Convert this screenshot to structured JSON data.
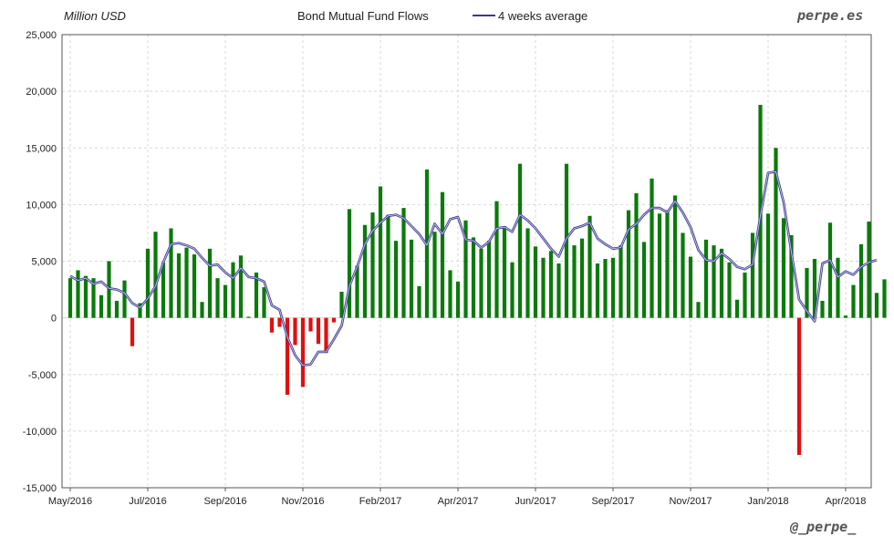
{
  "header": {
    "unit_label": "Million USD",
    "title": "Bond Mutual Fund Flows",
    "legend_label": "4 weeks average",
    "brand_top": "perpe.es",
    "brand_bottom": "@_perpe_"
  },
  "colors": {
    "positive": "#0a7a0a",
    "negative": "#e01010",
    "average_line": "#3a3a90",
    "grid": "#d9d9d9",
    "axis": "#555555"
  },
  "chart_data": {
    "type": "bar",
    "title": "Bond Mutual Fund Flows",
    "ylabel": "Million USD",
    "xlabel": "",
    "ylim": [
      -15000,
      25000
    ],
    "y_ticks": [
      {
        "value": 25000,
        "label": "25,000"
      },
      {
        "value": 20000,
        "label": "20,000"
      },
      {
        "value": 15000,
        "label": "15,000"
      },
      {
        "value": 10000,
        "label": "10,000"
      },
      {
        "value": 5000,
        "label": "5,000"
      },
      {
        "value": 0,
        "label": "0"
      },
      {
        "value": -5000,
        "label": "-5,000"
      },
      {
        "value": -10000,
        "label": "-10,000"
      },
      {
        "value": -15000,
        "label": "-15,000"
      }
    ],
    "x_ticks": [
      {
        "week": 0,
        "label": "May/2016"
      },
      {
        "week": 10,
        "label": "Jul/2016"
      },
      {
        "week": 20,
        "label": "Sep/2016"
      },
      {
        "week": 30,
        "label": "Nov/2016"
      },
      {
        "week": 40,
        "label": "Feb/2017"
      },
      {
        "week": 50,
        "label": "Apr/2017"
      },
      {
        "week": 60,
        "label": "Jun/2017"
      },
      {
        "week": 70,
        "label": "Sep/2017"
      },
      {
        "week": 80,
        "label": "Nov/2017"
      },
      {
        "week": 90,
        "label": "Jan/2018"
      },
      {
        "week": 100,
        "label": "Apr/2018"
      }
    ],
    "grid": true,
    "legend_position": "top",
    "series": [
      {
        "type": "bar",
        "values": [
          3500,
          4200,
          3700,
          3500,
          2000,
          5000,
          1500,
          3300,
          -2500,
          1300,
          6100,
          7600,
          4900,
          7900,
          5700,
          6200,
          5600,
          1400,
          6100,
          3500,
          2900,
          4900,
          5500,
          100,
          4000,
          2700,
          -1300,
          -800,
          -6800,
          -2400,
          -6100,
          -1200,
          -2300,
          -3100,
          -400,
          2300,
          9600,
          4600,
          8200,
          9300,
          11600,
          9100,
          6800,
          9700,
          6900,
          2800,
          13100,
          7600,
          11100,
          4200,
          3200,
          8600,
          7100,
          6100,
          6800,
          10300,
          8100,
          4900,
          13600,
          7900,
          6300,
          5300,
          5900,
          4800,
          13600,
          6400,
          7000,
          9000,
          4800,
          5200,
          5300,
          6400,
          9500,
          11000,
          6700,
          12300,
          9200,
          9500,
          10800,
          7500,
          5400,
          1400,
          6900,
          6400,
          6100,
          4900,
          1600,
          4000,
          7500,
          18800,
          9200,
          15000,
          8800,
          7300,
          -12100,
          4400,
          5200,
          1500,
          8400,
          5300,
          200,
          2900,
          6500,
          8500,
          2200,
          3400
        ]
      },
      {
        "type": "line",
        "name": "4 weeks average",
        "values": [
          3700,
          3300,
          3500,
          3000,
          3200,
          2600,
          2500,
          2200,
          1300,
          900,
          1700,
          2800,
          4900,
          6500,
          6600,
          6400,
          6100,
          5300,
          4600,
          4700,
          4000,
          3500,
          4400,
          3600,
          3500,
          3200,
          1100,
          700,
          -1700,
          -3300,
          -4200,
          -4100,
          -3000,
          -3000,
          -1900,
          -700,
          2800,
          4500,
          6500,
          7700,
          8400,
          9000,
          9100,
          8800,
          8100,
          7400,
          6400,
          8300,
          7400,
          8700,
          8900,
          6900,
          6800,
          6200,
          6700,
          7900,
          8000,
          7600,
          9100,
          8600,
          7900,
          7000,
          6100,
          5400,
          7000,
          7900,
          8100,
          8400,
          7000,
          6500,
          6100,
          6200,
          7800,
          8300,
          9100,
          9700,
          9700,
          9300,
          10300,
          9300,
          8000,
          6000,
          5100,
          5000,
          5700,
          5200,
          4500,
          4300,
          4700,
          9000,
          12800,
          12900,
          10200,
          5800,
          1600,
          600,
          -300,
          4800,
          5100,
          3600,
          4100,
          3800,
          4500,
          4900,
          5100
        ]
      }
    ]
  }
}
